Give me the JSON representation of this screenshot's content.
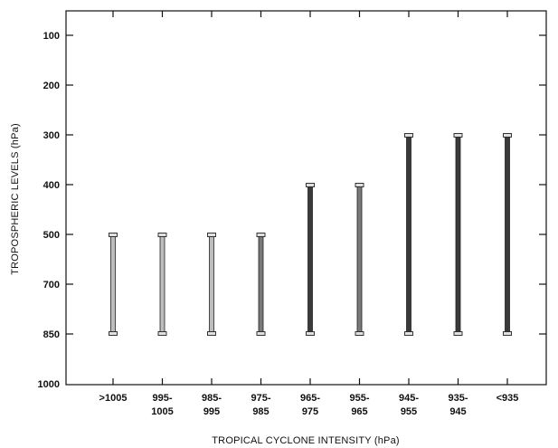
{
  "chart_data": {
    "type": "bar",
    "xlabel": "TROPICAL CYCLONE INTENSITY (hPa)",
    "ylabel": "TROPOSPHERIC LEVELS (hPa)",
    "y_ticks": [
      "100",
      "200",
      "300",
      "400",
      "500",
      "700",
      "850",
      "1000"
    ],
    "categories": [
      {
        "line1": ">1005",
        "line2": ""
      },
      {
        "line1": "995-",
        "line2": "1005"
      },
      {
        "line1": "985-",
        "line2": "995"
      },
      {
        "line1": "975-",
        "line2": "985"
      },
      {
        "line1": "965-",
        "line2": "975"
      },
      {
        "line1": "955-",
        "line2": "965"
      },
      {
        "line1": "945-",
        "line2": "955"
      },
      {
        "line1": "935-",
        "line2": "945"
      },
      {
        "line1": "<935",
        "line2": ""
      }
    ],
    "ranges": [
      {
        "top": 500,
        "bottom": 850
      },
      {
        "top": 500,
        "bottom": 850
      },
      {
        "top": 500,
        "bottom": 850
      },
      {
        "top": 500,
        "bottom": 850
      },
      {
        "top": 400,
        "bottom": 850
      },
      {
        "top": 400,
        "bottom": 850
      },
      {
        "top": 300,
        "bottom": 850
      },
      {
        "top": 300,
        "bottom": 850
      },
      {
        "top": 300,
        "bottom": 850
      }
    ],
    "bar_shading": [
      "light",
      "light",
      "light",
      "medium",
      "dark",
      "medium",
      "dark",
      "dark",
      "dark"
    ],
    "y_scale": "level-category (evenly spaced)",
    "grid": false,
    "legend": "none"
  }
}
